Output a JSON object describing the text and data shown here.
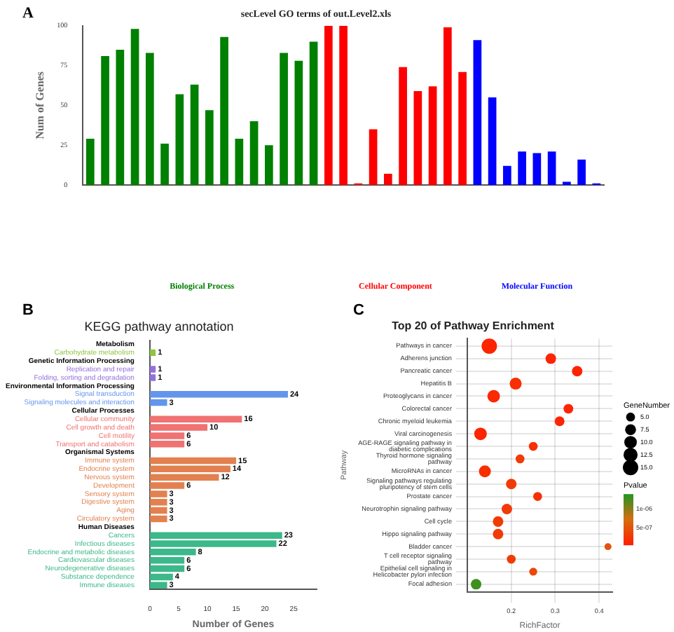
{
  "chart_data": [
    {
      "type": "bar",
      "title": "secLevel GO terms of out.Level2.xls",
      "ylabel": "Num of Genes",
      "annotations": [
        "A"
      ],
      "categories": [
        null,
        null,
        null,
        null,
        null,
        null,
        null,
        null,
        null,
        null,
        null,
        null,
        null,
        null,
        null,
        null,
        null,
        null,
        null,
        null,
        null,
        null,
        null,
        null,
        null,
        null,
        null,
        null,
        null,
        null,
        null,
        null,
        null,
        null,
        null
      ],
      "series": [
        {
          "name": "Biological Process",
          "color": "#008000",
          "values": [
            29,
            81,
            85,
            98,
            83,
            26,
            57,
            63,
            47,
            93,
            29,
            40,
            25,
            83,
            78,
            90,
            null,
            null,
            null,
            null,
            null,
            null,
            null,
            null,
            null,
            null,
            null,
            null,
            null,
            null,
            null,
            null,
            null,
            null,
            null
          ]
        },
        {
          "name": "Cellular Component",
          "color": "#ff0000",
          "values": [
            null,
            null,
            null,
            null,
            null,
            null,
            null,
            null,
            null,
            null,
            null,
            null,
            null,
            null,
            null,
            null,
            100,
            100,
            1,
            35,
            7,
            74,
            59,
            62,
            99,
            71,
            null,
            null,
            null,
            null,
            null,
            null,
            null,
            null,
            null
          ]
        },
        {
          "name": "Molecular Function",
          "color": "#0000ff",
          "values": [
            null,
            null,
            null,
            null,
            null,
            null,
            null,
            null,
            null,
            null,
            null,
            null,
            null,
            null,
            null,
            null,
            null,
            null,
            null,
            null,
            null,
            null,
            null,
            null,
            null,
            null,
            91,
            55,
            12,
            21,
            20,
            21,
            2,
            16,
            1
          ]
        }
      ],
      "ylim": [
        0,
        100
      ],
      "yticks": [
        0,
        25,
        50,
        75,
        100
      ]
    },
    {
      "type": "bar",
      "orientation": "horizontal",
      "title": "KEGG pathway annotation",
      "xlabel": "Number of Genes",
      "annotations": [
        "B"
      ],
      "categories": [
        "Metabolism",
        "Carbohydrate metabolism",
        "Genetic Information Processing",
        "Replication and repair",
        "Folding, sorting and degradation",
        "Environmental Information Processing",
        "Signal transduction",
        "Signaling molecules and interaction",
        "Cellular Processes",
        "Cellular community",
        "Cell growth and death",
        "Cell motility",
        "Transport and catabolism",
        "Organismal Systems",
        "Immune system",
        "Endocrine system",
        "Nervous system",
        "Development",
        "Sensory system",
        "Digestive system",
        "Aging",
        "Circulatory system",
        "Human Diseases",
        "Cancers",
        "Infectious diseases",
        "Endocrine and metabolic diseases",
        "Cardiovascular diseases",
        "Neurodegenerative diseases",
        "Substance dependence",
        "Immune diseases"
      ],
      "values": [
        null,
        1,
        null,
        1,
        1,
        null,
        24,
        3,
        null,
        16,
        10,
        6,
        6,
        null,
        15,
        14,
        12,
        6,
        3,
        3,
        3,
        3,
        null,
        23,
        22,
        8,
        6,
        6,
        4,
        3
      ],
      "colors": [
        null,
        "#8cc63f",
        null,
        "#9370db",
        "#9370db",
        null,
        "#6495ed",
        "#6495ed",
        null,
        "#f07272",
        "#f07272",
        "#f07272",
        "#f07272",
        null,
        "#e2814f",
        "#e2814f",
        "#e2814f",
        "#e2814f",
        "#e2814f",
        "#e2814f",
        "#e2814f",
        "#e2814f",
        null,
        "#3cb88a",
        "#3cb88a",
        "#3cb88a",
        "#3cb88a",
        "#3cb88a",
        "#3cb88a",
        "#3cb88a"
      ],
      "xlim": [
        0,
        29
      ],
      "xticks": [
        0,
        5,
        10,
        15,
        20,
        25
      ],
      "data_labels": true
    },
    {
      "type": "bubble",
      "orientation": "horizontal",
      "title": "Top 20 of Pathway Enrichment",
      "xlabel": "RichFactor",
      "ylabel": "Pathway",
      "annotations": [
        "C"
      ],
      "legend_title": "GeneNumber",
      "clabel": "Pvalue",
      "grid": true,
      "categories": [
        "Pathways in cancer",
        "Adherens junction",
        "Pancreatic cancer",
        "Hepatitis B",
        "Proteoglycans in cancer",
        "Colorectal cancer",
        "Chronic myeloid leukemia",
        "Viral carcinogenesis",
        "AGE-RAGE signaling pathway in diabetic complications",
        "Thyroid hormone signaling pathway",
        "MicroRNAs in cancer",
        "Signaling pathways regulating pluripotency of stem cells",
        "Prostate cancer",
        "Neurotrophin signaling pathway",
        "Cell cycle",
        "Hippo signaling pathway",
        "Bladder cancer",
        "T cell receptor signaling pathway",
        "Epithelial cell signaling in Helicobacter pylori infection",
        "Focal adhesion"
      ],
      "values": [
        0.15,
        0.29,
        0.35,
        0.21,
        0.16,
        0.33,
        0.31,
        0.13,
        0.25,
        0.22,
        0.14,
        0.2,
        0.26,
        0.19,
        0.17,
        0.17,
        0.42,
        0.2,
        0.25,
        0.12
      ],
      "sizes": [
        15,
        7,
        7,
        9,
        10,
        6,
        6,
        10,
        5,
        5,
        9,
        7,
        5,
        7,
        7,
        7,
        3,
        5,
        4,
        7
      ],
      "size_legend": [
        {
          "value": 5,
          "label": "5.0"
        },
        {
          "value": 7.5,
          "label": "7.5"
        },
        {
          "value": 10,
          "label": "10.0"
        },
        {
          "value": 12.5,
          "label": "12.5"
        },
        {
          "value": 15,
          "label": "15.0"
        }
      ],
      "cvalues": [
        1e-07,
        1e-07,
        1e-07,
        2e-07,
        1.5e-07,
        1e-07,
        1e-07,
        1e-07,
        2e-07,
        3e-07,
        2e-07,
        3e-07,
        2e-07,
        3e-07,
        3e-07,
        3e-07,
        5e-07,
        3e-07,
        4e-07,
        1.3e-06
      ],
      "clim": [
        7e-08,
        1.4e-06
      ],
      "cticks": [
        {
          "value": 1e-06,
          "label": "1e-06"
        },
        {
          "value": 5e-07,
          "label": "5e-07"
        }
      ],
      "xlim": [
        0.1,
        0.43
      ],
      "xticks": [
        0.2,
        0.3,
        0.4
      ]
    }
  ]
}
